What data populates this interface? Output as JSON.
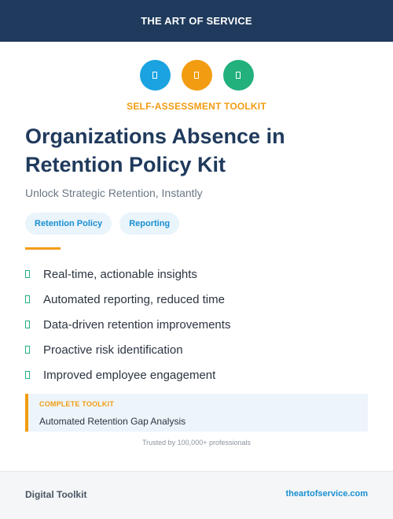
{
  "header": {
    "brand": "THE ART OF SERVICE"
  },
  "icons": [
    {
      "name": "document-icon",
      "color": "#1aa3e0"
    },
    {
      "name": "document-icon",
      "color": "#f29c12"
    },
    {
      "name": "document-icon",
      "color": "#22b07d"
    }
  ],
  "kicker": "SELF-ASSESSMENT TOOLKIT",
  "title": "Organizations Absence in Retention Policy Kit",
  "subtitle": "Unlock Strategic Retention, Instantly",
  "tags": [
    "Retention Policy",
    "Reporting"
  ],
  "features": [
    "Real-time, actionable insights",
    "Automated reporting, reduced time",
    "Data-driven retention improvements",
    "Proactive risk identification",
    "Improved employee engagement"
  ],
  "callout": {
    "label": "COMPLETE TOOLKIT",
    "text": "Automated Retention Gap Analysis"
  },
  "trusted": "Trusted by 100,000+ professionals",
  "footer": {
    "left": "Digital Toolkit",
    "right": "theartofservice.com"
  },
  "colors": {
    "navy": "#1f3a5c",
    "accent_orange": "#f29c12",
    "accent_blue": "#1aa3e0",
    "accent_green": "#22b07d"
  }
}
